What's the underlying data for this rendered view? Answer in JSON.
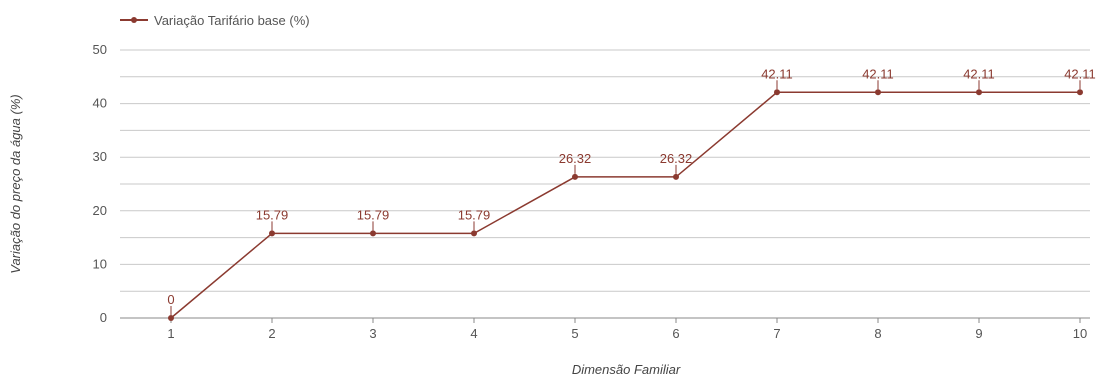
{
  "chart_data": {
    "type": "line",
    "title": "",
    "xlabel": "Dimensão Familiar",
    "ylabel": "Variação do preço da água (%)",
    "categories": [
      "1",
      "2",
      "3",
      "4",
      "5",
      "6",
      "7",
      "8",
      "9",
      "10"
    ],
    "series": [
      {
        "name": "Variação Tarifário base (%)",
        "values": [
          0,
          15.79,
          15.79,
          15.79,
          26.32,
          26.32,
          42.11,
          42.11,
          42.11,
          42.11
        ],
        "data_labels": [
          "0",
          "15.79",
          "15.79",
          "15.79",
          "26.32",
          "26.32",
          "42.11",
          "42.11",
          "42.11",
          "42.11"
        ],
        "color": "#8b3a30"
      }
    ],
    "ylim": [
      0,
      50
    ],
    "yticks": [
      0,
      10,
      20,
      30,
      40,
      50
    ],
    "grid": true,
    "legend_position": "top-left"
  }
}
